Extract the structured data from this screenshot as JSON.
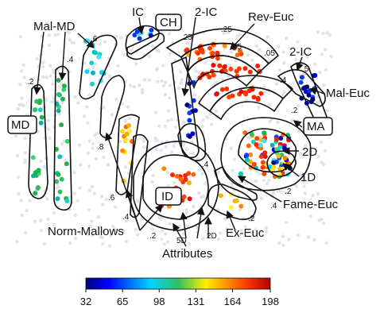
{
  "labels": {
    "ic_top": "IC",
    "ch_box": "CH",
    "ic2_top": "2-IC",
    "rev_euc": "Rev-Euc",
    "mal_md": "Mal-MD",
    "ic2_right": "2-IC",
    "mal_euc": "Mal-Euc",
    "md_box": "MD",
    "ma_box": "MA",
    "d2": "2D",
    "d1": "1D",
    "fame_euc": "Fame-Euc",
    "id_box": "ID",
    "norm_mallows": "Norm-Mallows",
    "ex_euc": "Ex-Euc",
    "attributes": "Attributes",
    "d5": "5D",
    "d2b": "2D"
  },
  "param_labels": {
    "p_25a": ".25",
    "p_25b": ".25",
    "p_15": ".15",
    "p_05": ".05",
    "p_6": ".6",
    "p_4a": ".4",
    "p_2a": ".2",
    "p_8": ".8",
    "p_6b": ".6",
    "p_4b": ".4",
    "p_5": ".5",
    "p_4c": ".4",
    "p_2b": ".2",
    "p_4d": ".4",
    "p_2c": ".2",
    "p_4e": ".4",
    "p_2d": ".2",
    "p_2e": ".2"
  },
  "colorbar": {
    "min": 32,
    "max": 198,
    "ticks": [
      "32",
      "65",
      "98",
      "131",
      "164",
      "198"
    ]
  }
}
